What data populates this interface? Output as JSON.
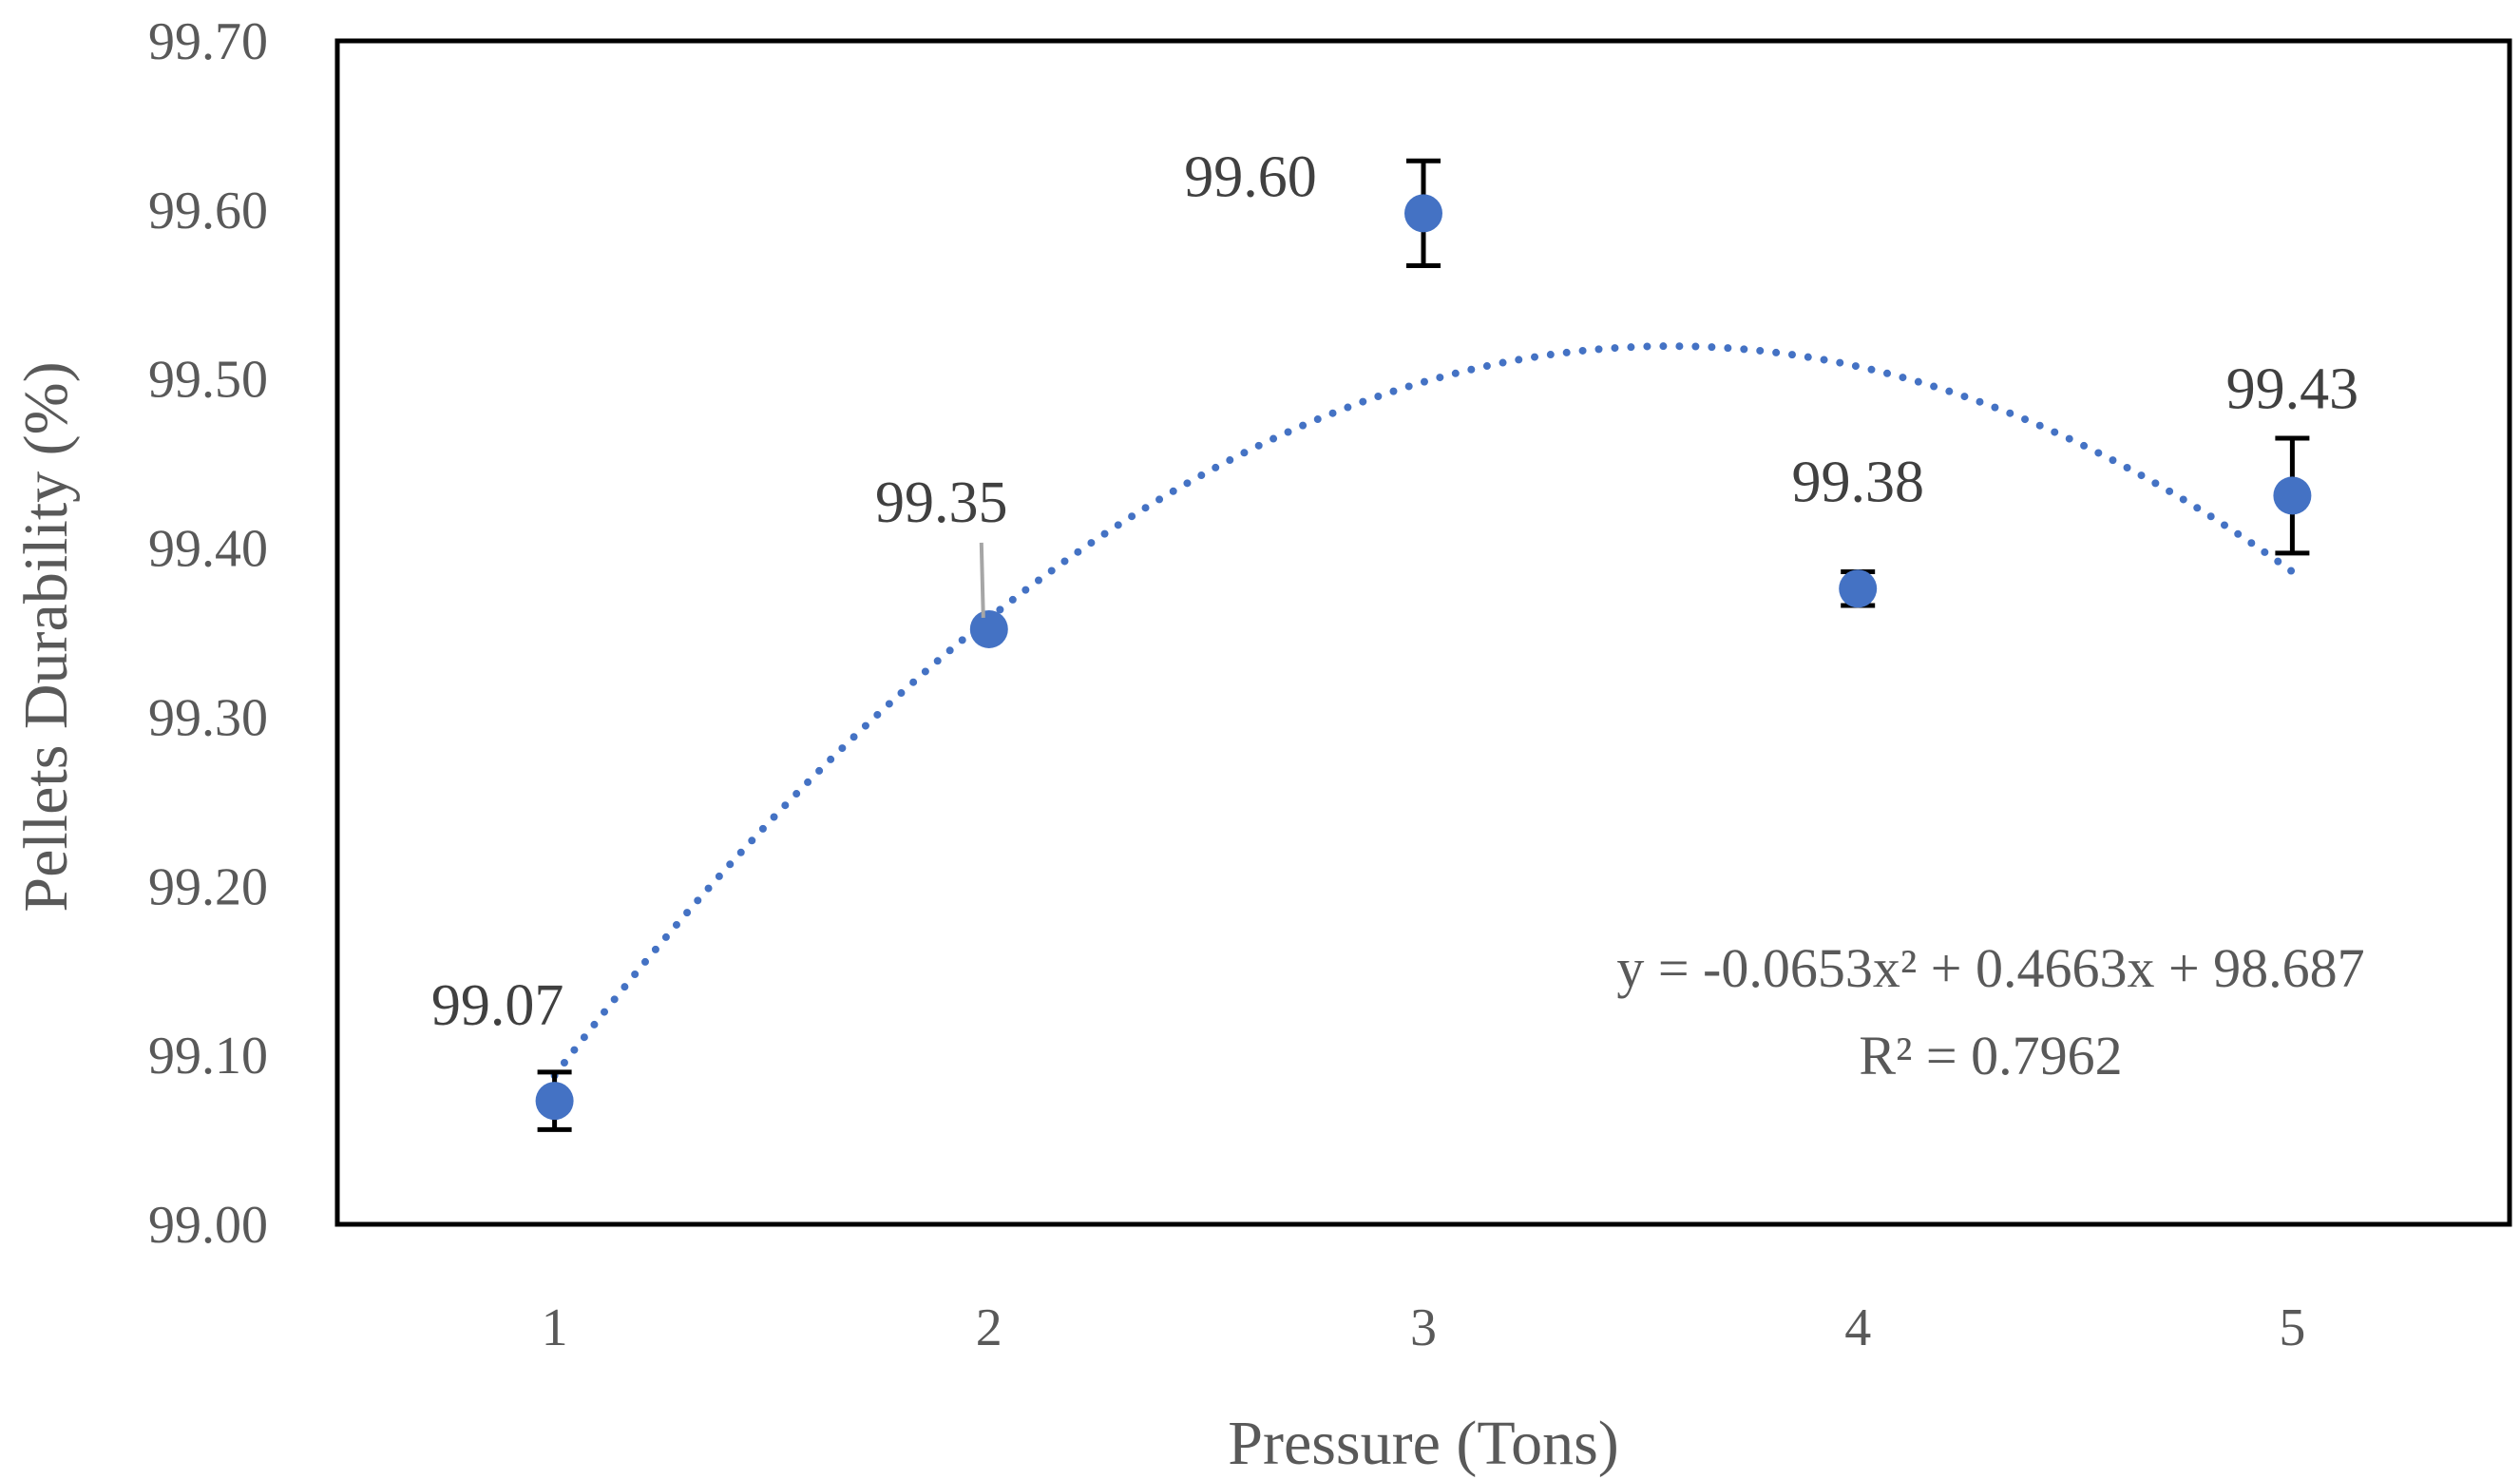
{
  "chart_data": {
    "type": "scatter",
    "title": "",
    "xlabel": "Pressure (Tons)",
    "ylabel": "Pellets Durability  (%)",
    "xlim": [
      0.5,
      5.5
    ],
    "ylim": [
      99.0,
      99.7
    ],
    "x_ticks": [
      1,
      2,
      3,
      4,
      5
    ],
    "y_ticks": [
      "99.00",
      "99.10",
      "99.20",
      "99.30",
      "99.40",
      "99.50",
      "99.60",
      "99.70"
    ],
    "marker_color": "#4472C4",
    "series": [
      {
        "name": "Pellets Durability",
        "x": [
          1,
          2,
          3,
          4,
          5
        ],
        "y": [
          99.073,
          99.352,
          99.598,
          99.376,
          99.431
        ],
        "labels": [
          "99.07",
          "99.35",
          "99.60",
          "99.38",
          "99.43"
        ],
        "error": [
          0.017,
          0.0,
          0.031,
          0.01,
          0.034
        ]
      }
    ],
    "trendline": {
      "type": "polynomial",
      "order": 2,
      "coefficients": [
        -0.0653,
        0.4663,
        98.687
      ],
      "x_range": [
        1,
        5
      ],
      "style": "dotted",
      "color": "#4472C4",
      "equation_label": "y = -0.0653x² + 0.4663x + 98.687",
      "r2_label": "R² = 0.7962"
    }
  }
}
